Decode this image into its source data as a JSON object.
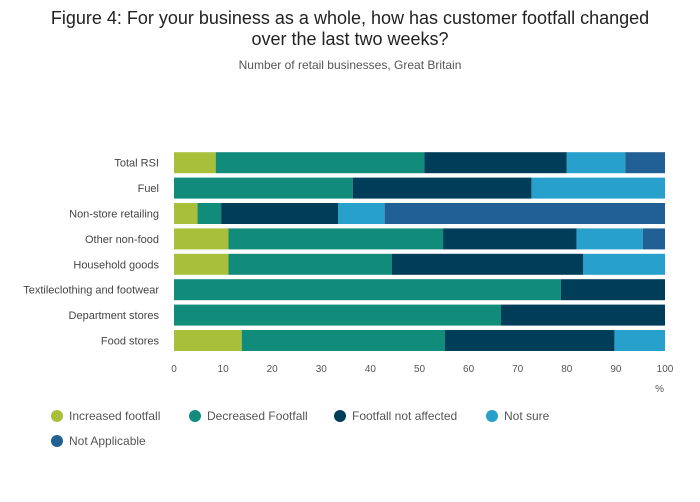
{
  "chart_data": {
    "type": "bar",
    "orientation": "horizontal",
    "stacked": true,
    "title_line1": "Figure 4: For your business as a whole, how has customer footfall changed",
    "title_line2": "over the last two weeks?",
    "subtitle": "Number of retail businesses, Great Britain",
    "xlabel": "%",
    "xlim": [
      0,
      100
    ],
    "xticks": [
      0,
      10,
      20,
      30,
      40,
      50,
      60,
      70,
      80,
      90,
      100
    ],
    "categories": [
      "Total RSI",
      "Fuel",
      "Non-store retailing",
      "Other non-food",
      "Household goods",
      "Textileclothing and footwear",
      "Department stores",
      "Food stores"
    ],
    "series": [
      {
        "name": "Increased footfall",
        "color": "#a8bf3a",
        "values": [
          8.5,
          0,
          4.8,
          11.1,
          11.1,
          0,
          0,
          13.8
        ]
      },
      {
        "name": "Decreased Footfall",
        "color": "#118c7b",
        "values": [
          42.5,
          36.4,
          4.8,
          43.7,
          33.3,
          78.8,
          66.6,
          41.4
        ]
      },
      {
        "name": "Footfall not affected",
        "color": "#003d59",
        "values": [
          29.0,
          36.4,
          23.8,
          27.2,
          38.9,
          21.2,
          33.4,
          34.5
        ]
      },
      {
        "name": "Not sure",
        "color": "#27a0cc",
        "values": [
          11.9,
          27.2,
          9.5,
          13.5,
          16.7,
          0,
          0,
          10.3
        ]
      },
      {
        "name": "Not Applicable",
        "color": "#206095",
        "values": [
          8.1,
          0,
          57.1,
          4.5,
          0,
          0,
          0,
          0
        ]
      }
    ],
    "legend_position": "bottom-left"
  }
}
